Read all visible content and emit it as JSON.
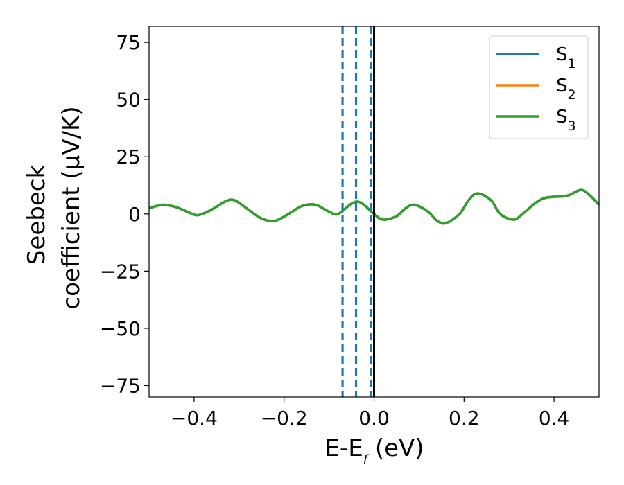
{
  "chart_data": {
    "type": "line",
    "title": "",
    "xlabel": {
      "main": "E-E",
      "sub": "f",
      "suffix": " (eV)"
    },
    "ylabel": {
      "line1": "Seebeck",
      "line2": "coefficient  (μV/K)"
    },
    "xlim": [
      -0.5,
      0.5
    ],
    "ylim": [
      -80,
      82
    ],
    "xticks": [
      -0.4,
      -0.2,
      0.0,
      0.2,
      0.4
    ],
    "xtick_labels": [
      "−0.4",
      "−0.2",
      "0.0",
      "0.2",
      "0.4"
    ],
    "yticks": [
      -75,
      -50,
      -25,
      0,
      25,
      50,
      75
    ],
    "ytick_labels": [
      "−75",
      "−50",
      "−25",
      "0",
      "25",
      "50",
      "75"
    ],
    "grid": false,
    "legend_placement": "top-right",
    "series": [
      {
        "name": "S",
        "sub": "1",
        "color": "#1f77b4",
        "x": [
          -0.5,
          -0.47,
          -0.44,
          -0.41,
          -0.39,
          -0.36,
          -0.33,
          -0.31,
          -0.28,
          -0.25,
          -0.22,
          -0.19,
          -0.16,
          -0.13,
          -0.1,
          -0.08,
          -0.05,
          -0.03,
          0.0,
          0.02,
          0.05,
          0.07,
          0.09,
          0.12,
          0.14,
          0.16,
          0.19,
          0.21,
          0.23,
          0.26,
          0.28,
          0.31,
          0.33,
          0.36,
          0.38,
          0.4,
          0.43,
          0.46,
          0.48,
          0.5
        ],
        "y": [
          2.5,
          4,
          3,
          0.5,
          -0.5,
          2,
          5.5,
          6,
          2,
          -2,
          -3,
          0,
          3.5,
          4,
          1,
          0,
          4.5,
          5,
          0,
          -2.5,
          -1,
          2.5,
          4,
          1,
          -3,
          -4,
          0,
          6,
          9,
          6,
          0,
          -2.5,
          0,
          5,
          7,
          7.5,
          8,
          10.5,
          8,
          4
        ]
      },
      {
        "name": "S",
        "sub": "2",
        "color": "#ff7f0e",
        "x": [
          -0.5,
          -0.47,
          -0.44,
          -0.41,
          -0.39,
          -0.36,
          -0.33,
          -0.31,
          -0.28,
          -0.25,
          -0.22,
          -0.19,
          -0.16,
          -0.13,
          -0.1,
          -0.08,
          -0.05,
          -0.03,
          0.0,
          0.02,
          0.05,
          0.07,
          0.09,
          0.12,
          0.14,
          0.16,
          0.19,
          0.21,
          0.23,
          0.26,
          0.28,
          0.31,
          0.33,
          0.36,
          0.38,
          0.4,
          0.43,
          0.46,
          0.48,
          0.5
        ],
        "y": [
          2.5,
          4,
          3,
          0.5,
          -0.5,
          2,
          5.5,
          6,
          2,
          -2,
          -3,
          0,
          3.5,
          4,
          1,
          0,
          4.5,
          5,
          0,
          -2.5,
          -1,
          2.5,
          4,
          1,
          -3,
          -4,
          0,
          6,
          9,
          6,
          0,
          -2.5,
          0,
          5,
          7,
          7.5,
          8,
          10.5,
          8,
          4
        ]
      },
      {
        "name": "S",
        "sub": "3",
        "color": "#2ca02c",
        "x": [
          -0.5,
          -0.47,
          -0.44,
          -0.41,
          -0.39,
          -0.36,
          -0.33,
          -0.31,
          -0.28,
          -0.25,
          -0.22,
          -0.19,
          -0.16,
          -0.13,
          -0.1,
          -0.08,
          -0.05,
          -0.03,
          0.0,
          0.02,
          0.05,
          0.07,
          0.09,
          0.12,
          0.14,
          0.16,
          0.19,
          0.21,
          0.23,
          0.26,
          0.28,
          0.31,
          0.33,
          0.36,
          0.38,
          0.4,
          0.43,
          0.46,
          0.48,
          0.5
        ],
        "y": [
          2.5,
          4,
          3,
          0.5,
          -0.5,
          2,
          5.5,
          6,
          2,
          -2,
          -3,
          0,
          3.5,
          4,
          1,
          0,
          4.5,
          5,
          0,
          -2.5,
          -1,
          2.5,
          4,
          1,
          -3,
          -4,
          0,
          6,
          9,
          6,
          0,
          -2.5,
          0,
          5,
          7,
          7.5,
          8,
          10.5,
          8,
          4
        ]
      }
    ],
    "vlines": [
      {
        "x": -0.07,
        "style": "dashed",
        "color": "#1f77b4"
      },
      {
        "x": -0.04,
        "style": "dashed",
        "color": "#1f77b4"
      },
      {
        "x": -0.007,
        "style": "dashed",
        "color": "#1f77b4"
      },
      {
        "x": 0.0,
        "style": "solid",
        "color": "#000000"
      }
    ]
  }
}
